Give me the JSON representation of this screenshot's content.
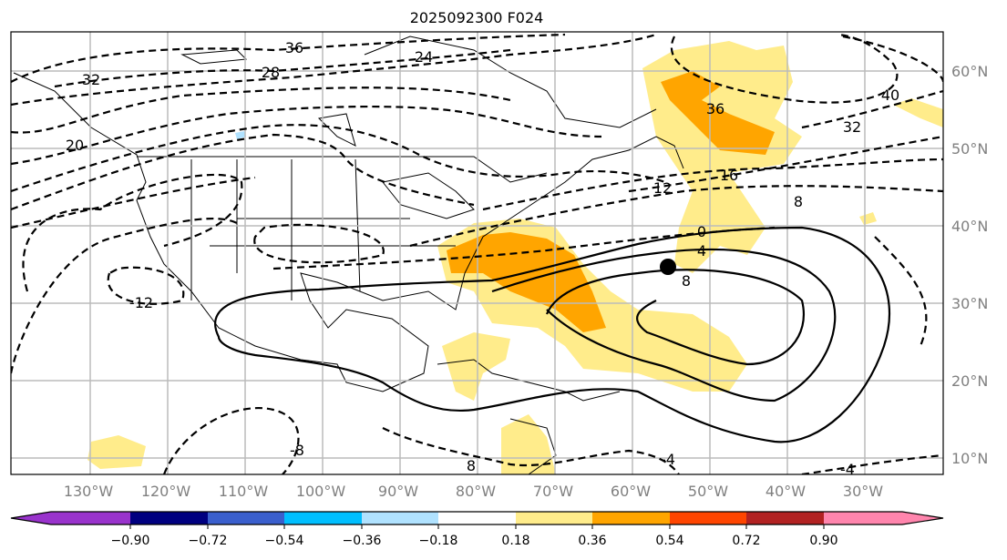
{
  "title": "2025092300 F024",
  "lon_labels": [
    "130°W",
    "120°W",
    "110°W",
    "100°W",
    "90°W",
    "80°W",
    "70°W",
    "60°W",
    "50°W",
    "40°W",
    "30°W"
  ],
  "lat_labels": [
    "60°N",
    "50°N",
    "40°N",
    "30°N",
    "20°N",
    "10°N"
  ],
  "contour_labels": [
    "36",
    "28",
    "24",
    "32",
    "20",
    "-12",
    "40",
    "36",
    "32",
    "16",
    "12",
    "8",
    "0",
    "4",
    "8",
    "-8",
    "8",
    "-4",
    "-4"
  ],
  "colorbar": {
    "ticks": [
      "−0.90",
      "−0.72",
      "−0.54",
      "−0.36",
      "−0.18",
      "0.18",
      "0.36",
      "0.54",
      "0.72",
      "0.90"
    ],
    "colors": [
      "#9933cc",
      "#000080",
      "#3a5fcd",
      "#00bfff",
      "#b0e2ff",
      "#ffffff",
      "#ffec8b",
      "#ffa500",
      "#ff4500",
      "#b22222",
      "#ff85ad"
    ]
  },
  "marker": "storm-center"
}
